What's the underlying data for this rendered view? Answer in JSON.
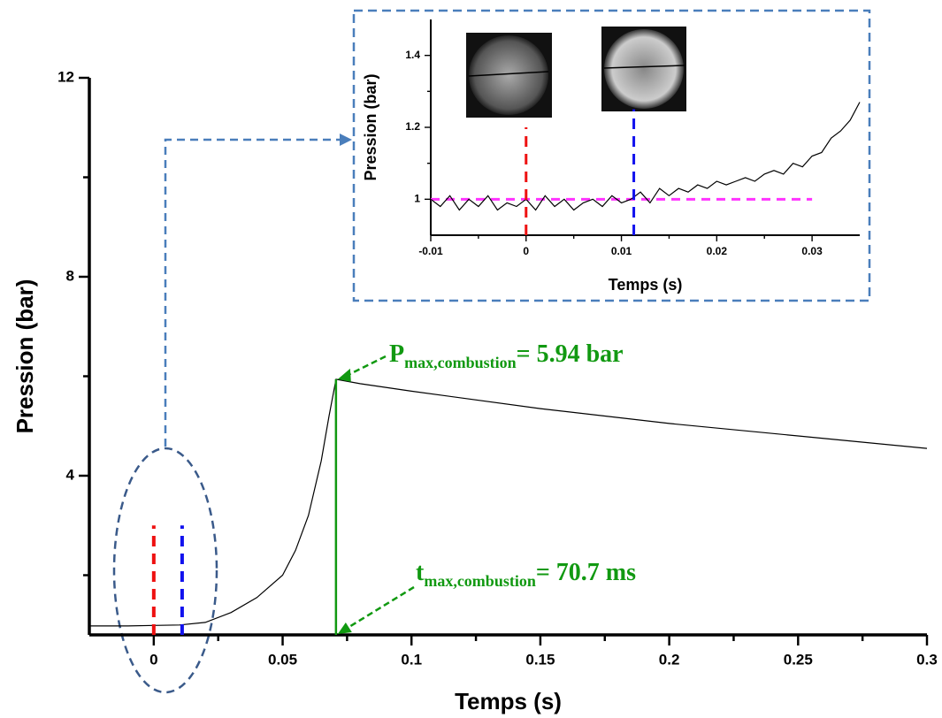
{
  "chart_data": [
    {
      "type": "line",
      "xlabel": "Temps (s)",
      "ylabel": "Pression (bar)",
      "xlim": [
        -0.025,
        0.3
      ],
      "xticks": [
        0,
        0.05,
        0.1,
        0.15,
        0.2,
        0.25,
        0.3
      ],
      "xminorticks": [
        0.025,
        0.075,
        0.125,
        0.175,
        0.225,
        0.275
      ],
      "ylim": [
        0.8,
        12
      ],
      "yticks": [
        4,
        8,
        12
      ],
      "yminorticks": [
        2,
        6,
        10
      ],
      "x": [
        -0.025,
        -0.01,
        0,
        0.01,
        0.02,
        0.03,
        0.04,
        0.05,
        0.055,
        0.06,
        0.065,
        0.068,
        0.0707,
        0.08,
        0.1,
        0.15,
        0.2,
        0.25,
        0.3
      ],
      "series": [
        {
          "color": "#000000",
          "values": [
            0.98,
            0.98,
            0.99,
            1.0,
            1.05,
            1.25,
            1.55,
            2.0,
            2.5,
            3.2,
            4.3,
            5.2,
            5.94,
            5.85,
            5.7,
            5.35,
            5.05,
            4.8,
            4.55
          ]
        }
      ],
      "markers": [
        {
          "x": 0,
          "ymax": 3,
          "color": "#ee1111"
        },
        {
          "x": 0.011,
          "ymax": 3,
          "color": "#1111ee"
        }
      ],
      "peak": {
        "x": 0.0707,
        "y": 5.94,
        "color": "#119911"
      },
      "annotations": {
        "p_main": "P",
        "p_sub": "max,combustion",
        "p_rest": "= 5.94 bar",
        "t_main": "t",
        "t_sub": "max,combustion",
        "t_rest": "= 70.7 ms"
      }
    },
    {
      "type": "line",
      "xlabel": "Temps (s)",
      "ylabel": "Pression (bar)",
      "xlim": [
        -0.01,
        0.035
      ],
      "xticks": [
        -0.01,
        0,
        0.01,
        0.02,
        0.03
      ],
      "xminorticks": [
        -0.005,
        0.005,
        0.015,
        0.025
      ],
      "ylim": [
        0.9,
        1.5
      ],
      "yticks": [
        1,
        1.2,
        1.4
      ],
      "yminorticks": [
        1.1,
        1.3
      ],
      "x": [
        -0.01,
        -0.009,
        -0.008,
        -0.007,
        -0.006,
        -0.005,
        -0.004,
        -0.003,
        -0.002,
        -0.001,
        0,
        0.001,
        0.002,
        0.003,
        0.004,
        0.005,
        0.006,
        0.007,
        0.008,
        0.009,
        0.01,
        0.011,
        0.012,
        0.013,
        0.014,
        0.015,
        0.016,
        0.017,
        0.018,
        0.019,
        0.02,
        0.021,
        0.022,
        0.023,
        0.024,
        0.025,
        0.026,
        0.027,
        0.028,
        0.029,
        0.03,
        0.031,
        0.032,
        0.033,
        0.034,
        0.035
      ],
      "series": [
        {
          "color": "#000000",
          "values": [
            1.0,
            0.98,
            1.01,
            0.97,
            1.0,
            0.98,
            1.01,
            0.97,
            0.99,
            0.98,
            1.0,
            0.97,
            1.01,
            0.98,
            1.0,
            0.97,
            0.99,
            1.0,
            0.98,
            1.01,
            0.99,
            1.0,
            1.02,
            0.99,
            1.03,
            1.01,
            1.03,
            1.02,
            1.04,
            1.03,
            1.05,
            1.04,
            1.05,
            1.06,
            1.05,
            1.07,
            1.08,
            1.07,
            1.1,
            1.09,
            1.12,
            1.13,
            1.17,
            1.19,
            1.22,
            1.27
          ]
        }
      ],
      "markers": [
        {
          "x": 0,
          "ymax": 1.2,
          "color": "#ee1111"
        },
        {
          "x": 0.0113,
          "ymax": 1.25,
          "color": "#1111ee"
        }
      ],
      "reference": {
        "y": 1,
        "xmax": 0.03,
        "color": "#ff33ff"
      }
    }
  ]
}
